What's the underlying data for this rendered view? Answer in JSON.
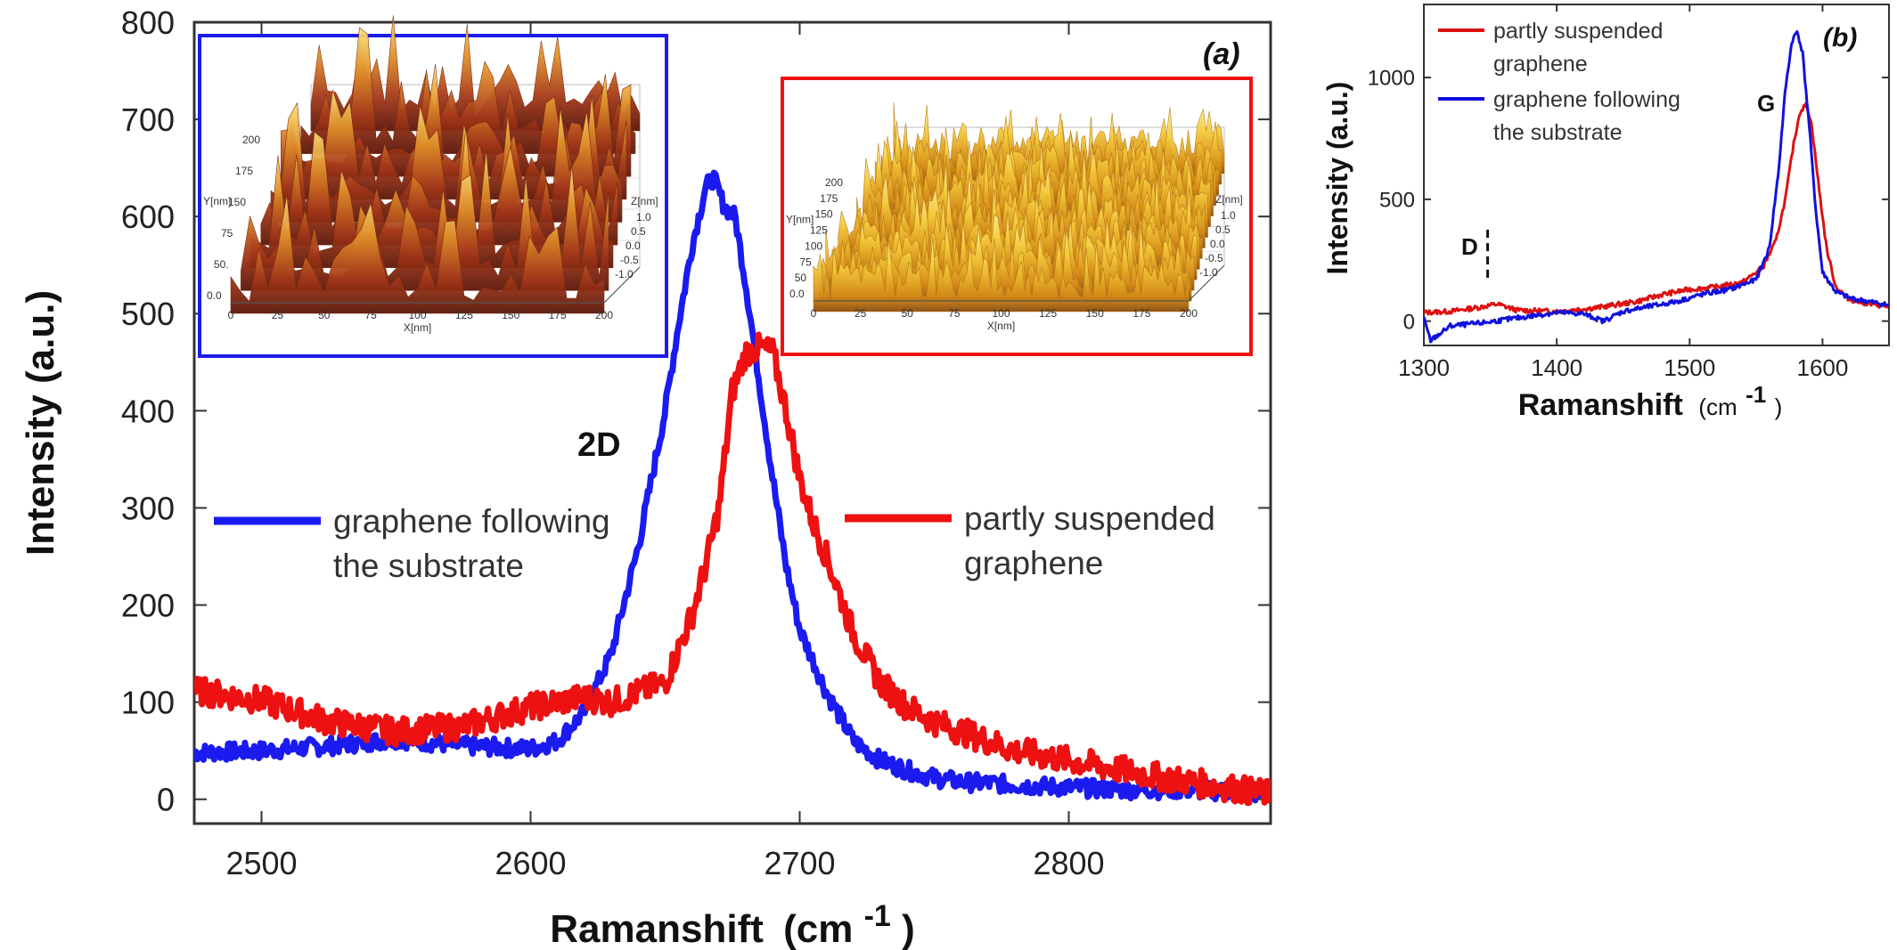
{
  "chart_data": [
    {
      "id": "a",
      "type": "line",
      "panel_label": "(a)",
      "xlabel": "Ramanshift",
      "xlabel_unit": "(cm",
      "xlabel_sup": "-1",
      "xlabel_close": ")",
      "ylabel": "Intensity (a.u.)",
      "xlim": [
        2475,
        2875
      ],
      "ylim": [
        -25,
        800
      ],
      "xticks": [
        2500,
        2600,
        2700,
        2800
      ],
      "yticks": [
        0,
        100,
        200,
        300,
        400,
        500,
        600,
        700,
        800
      ],
      "annotation": "2D",
      "series": [
        {
          "name": "graphene following the substrate",
          "legend_line1": "graphene following",
          "legend_line2": "the substrate",
          "color": "#1b1bf0",
          "x": [
            2475,
            2500,
            2525,
            2550,
            2575,
            2600,
            2610,
            2620,
            2630,
            2640,
            2650,
            2655,
            2660,
            2665,
            2668,
            2672,
            2676,
            2680,
            2685,
            2690,
            2695,
            2700,
            2710,
            2720,
            2730,
            2740,
            2750,
            2760,
            2780,
            2800,
            2820,
            2840,
            2860,
            2875
          ],
          "y": [
            48,
            50,
            55,
            62,
            55,
            52,
            60,
            90,
            150,
            260,
            400,
            490,
            570,
            630,
            640,
            610,
            600,
            530,
            430,
            330,
            240,
            175,
            110,
            60,
            40,
            30,
            22,
            18,
            15,
            12,
            10,
            10,
            8,
            5
          ]
        },
        {
          "name": "partly suspended graphene",
          "legend_line1": "partly suspended",
          "legend_line2": "graphene",
          "color": "#ee1111",
          "x": [
            2475,
            2500,
            2525,
            2550,
            2575,
            2600,
            2620,
            2630,
            2640,
            2650,
            2660,
            2665,
            2670,
            2675,
            2680,
            2685,
            2690,
            2695,
            2700,
            2705,
            2710,
            2720,
            2730,
            2740,
            2750,
            2760,
            2780,
            2800,
            2820,
            2840,
            2860,
            2875
          ],
          "y": [
            112,
            102,
            80,
            70,
            75,
            95,
            105,
            100,
            110,
            120,
            190,
            240,
            300,
            420,
            460,
            465,
            460,
            400,
            330,
            285,
            250,
            170,
            120,
            95,
            80,
            70,
            50,
            40,
            30,
            20,
            12,
            5
          ]
        }
      ],
      "insets": [
        {
          "frame_color": "#1b1bf0",
          "y_axis_label": "Y[nm]",
          "x_axis_label": "X[nm]",
          "z_axis_label": "Z[nm]",
          "x_ticks": [
            "0",
            "25",
            "50",
            "75",
            "100",
            "125",
            "150",
            "175",
            "200"
          ],
          "y_ticks": [
            "0.0",
            "50.",
            "75",
            "150",
            "175",
            "200"
          ],
          "z_ticks": [
            "1.0",
            "0.5",
            "0.0",
            "-0.5",
            "-1.0"
          ],
          "surface": "rough"
        },
        {
          "frame_color": "#ee1111",
          "y_axis_label": "Y[nm]",
          "x_axis_label": "X[nm]",
          "z_axis_label": "Z[nm]",
          "x_ticks": [
            "0",
            "25",
            "50",
            "75",
            "100",
            "125",
            "150",
            "175",
            "200"
          ],
          "y_ticks": [
            "0.0",
            "50",
            "75",
            "100",
            "125",
            "150",
            "175",
            "200"
          ],
          "z_ticks": [
            "1.0",
            "0.5",
            "0.0",
            "-0.5",
            "-1.0"
          ],
          "surface": "fine"
        }
      ]
    },
    {
      "id": "b",
      "type": "line",
      "panel_label": "(b)",
      "xlabel": "Ramanshift",
      "xlabel_unit": "(cm",
      "xlabel_sup": "-1",
      "xlabel_close": ")",
      "ylabel": "Intensity (a.u.)",
      "xlim": [
        1300,
        1650
      ],
      "ylim": [
        -100,
        1300
      ],
      "xticks": [
        1300,
        1400,
        1500,
        1600
      ],
      "yticks": [
        0,
        500,
        1000
      ],
      "annotation_d": "D",
      "annotation_d_x": 1348,
      "annotation_g": "G",
      "series": [
        {
          "name": "partly suspended graphene",
          "legend_line1": "partly suspended",
          "legend_line2": "graphene",
          "color": "#dd1111",
          "x": [
            1300,
            1320,
            1340,
            1355,
            1370,
            1400,
            1430,
            1460,
            1480,
            1500,
            1520,
            1540,
            1555,
            1565,
            1572,
            1578,
            1583,
            1588,
            1592,
            1597,
            1603,
            1610,
            1620,
            1635,
            1650
          ],
          "y": [
            35,
            40,
            55,
            70,
            45,
            40,
            55,
            80,
            110,
            130,
            140,
            160,
            220,
            330,
            500,
            720,
            860,
            890,
            800,
            560,
            300,
            140,
            90,
            70,
            60
          ]
        },
        {
          "name": "graphene following the substrate",
          "legend_line1": "graphene following",
          "legend_line2": "the substrate",
          "color": "#1111dd",
          "x": [
            1300,
            1305,
            1310,
            1320,
            1340,
            1360,
            1380,
            1400,
            1420,
            1435,
            1450,
            1470,
            1490,
            1510,
            1530,
            1550,
            1560,
            1567,
            1572,
            1577,
            1581,
            1585,
            1590,
            1595,
            1600,
            1610,
            1620,
            1635,
            1650
          ],
          "y": [
            10,
            -80,
            -60,
            -20,
            -10,
            5,
            20,
            35,
            30,
            0,
            40,
            60,
            80,
            110,
            130,
            170,
            300,
            620,
            950,
            1150,
            1190,
            1100,
            800,
            450,
            200,
            120,
            95,
            80,
            65
          ]
        }
      ]
    }
  ]
}
